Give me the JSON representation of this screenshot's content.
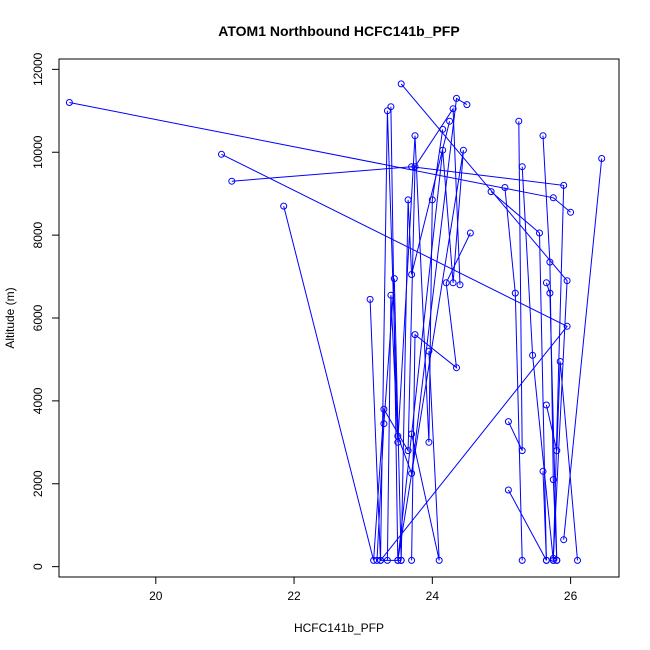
{
  "chart_data": {
    "type": "line",
    "title": "ATOM1 Northbound HCFC141b_PFP",
    "xlabel": "HCFC141b_PFP",
    "ylabel": "Altitude (m)",
    "xlim": [
      18.6,
      26.7
    ],
    "ylim": [
      -250,
      12250
    ],
    "xticks": [
      20,
      22,
      24,
      26
    ],
    "yticks": [
      0,
      2000,
      4000,
      6000,
      8000,
      10000,
      12000
    ],
    "grid": false,
    "color": "#0000ff",
    "series": [
      {
        "x": [
          18.75,
          25.75,
          26.0
        ],
        "y": [
          11200,
          8900,
          8550
        ]
      },
      {
        "x": [
          20.95,
          25.95,
          23.25,
          23.55
        ],
        "y": [
          9950,
          5800,
          150,
          150
        ]
      },
      {
        "x": [
          21.1,
          23.7,
          25.9,
          25.75
        ],
        "y": [
          9300,
          9650,
          9200,
          150
        ]
      },
      {
        "x": [
          21.85,
          23.15,
          23.3,
          23.65,
          23.75,
          24.3,
          24.4
        ],
        "y": [
          8700,
          150,
          3800,
          2800,
          9650,
          11050,
          6800
        ]
      },
      {
        "x": [
          23.1,
          23.25,
          23.35,
          23.5,
          23.7,
          24.35,
          24.5
        ],
        "y": [
          6450,
          150,
          11000,
          3150,
          2250,
          11300,
          11150
        ]
      },
      {
        "x": [
          23.35,
          23.4,
          23.5,
          23.75,
          23.95,
          24.0,
          24.15
        ],
        "y": [
          150,
          6550,
          3000,
          10400,
          3000,
          8850,
          10550
        ]
      },
      {
        "x": [
          23.2,
          23.3,
          23.45,
          23.55,
          23.65,
          23.7,
          24.25
        ],
        "y": [
          150,
          3450,
          6950,
          150,
          8850,
          7050,
          10750
        ]
      },
      {
        "x": [
          23.4,
          23.5,
          24.15,
          24.3,
          24.45,
          23.5
        ],
        "y": [
          11100,
          150,
          10050,
          6850,
          10050,
          150
        ]
      },
      {
        "x": [
          23.55,
          25.95,
          25.75
        ],
        "y": [
          11650,
          6900,
          200
        ]
      },
      {
        "x": [
          23.7,
          23.75,
          24.35,
          24.2,
          24.55
        ],
        "y": [
          150,
          5600,
          4800,
          6850,
          8050
        ]
      },
      {
        "x": [
          23.7,
          24.1,
          23.95
        ],
        "y": [
          3200,
          150,
          5200
        ]
      },
      {
        "x": [
          24.85,
          25.55,
          25.65
        ],
        "y": [
          9050,
          8050,
          150
        ]
      },
      {
        "x": [
          25.05,
          25.2,
          25.3
        ],
        "y": [
          9150,
          6600,
          150
        ]
      },
      {
        "x": [
          25.25,
          25.3,
          25.1
        ],
        "y": [
          10750,
          2800,
          3500
        ]
      },
      {
        "x": [
          25.3,
          25.45,
          25.75
        ],
        "y": [
          9650,
          5100,
          150
        ]
      },
      {
        "x": [
          25.1,
          25.65,
          25.6
        ],
        "y": [
          1850,
          150,
          2300
        ]
      },
      {
        "x": [
          25.6,
          25.7,
          25.75,
          25.8
        ],
        "y": [
          10400,
          7350,
          2100,
          150
        ]
      },
      {
        "x": [
          25.65,
          25.7,
          25.8
        ],
        "y": [
          6850,
          6600,
          150
        ]
      },
      {
        "x": [
          25.65,
          25.8,
          25.85,
          26.1
        ],
        "y": [
          3900,
          2800,
          4950,
          150
        ]
      },
      {
        "x": [
          25.9,
          26.45
        ],
        "y": [
          650,
          9850
        ]
      }
    ]
  }
}
